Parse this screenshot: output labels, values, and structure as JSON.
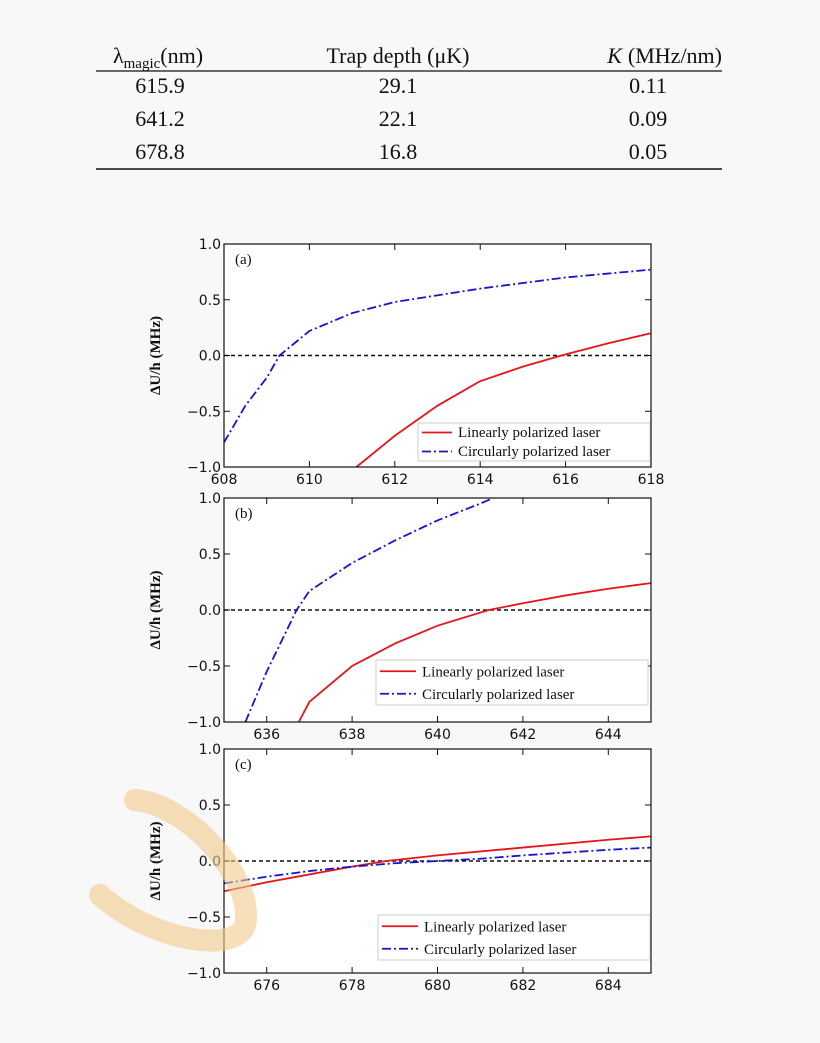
{
  "table": {
    "header": [
      {
        "symbol": "λ",
        "subscript": "magic",
        "unit": "(nm)"
      },
      "Trap depth (μK)",
      {
        "symbol": "K",
        "unit": "(MHz/nm)"
      }
    ],
    "rows": [
      [
        "615.9",
        "29.1",
        "0.11"
      ],
      [
        "641.2",
        "22.1",
        "0.09"
      ],
      [
        "678.8",
        "16.8",
        "0.05"
      ]
    ]
  },
  "chart_data": [
    {
      "type": "line",
      "panel_label": "(a)",
      "ylabel": "ΔU/h (MHz)",
      "xlim": [
        608,
        618
      ],
      "xticks": [
        608,
        610,
        612,
        614,
        616,
        618
      ],
      "ylim": [
        -1,
        1
      ],
      "yticks": [
        {
          "value": -1,
          "label": "−1.0"
        },
        {
          "value": -0.5,
          "label": "−0.5"
        },
        {
          "value": 0,
          "label": "0.0"
        },
        {
          "value": 0.5,
          "label": "0.5"
        },
        {
          "value": 1,
          "label": "1.0"
        }
      ],
      "reference_line": 0,
      "series": [
        {
          "name": "Linearly polarized laser",
          "color": "#e8141c",
          "style": "solid",
          "x": [
            611.1,
            612,
            613,
            614,
            615,
            615.9,
            617,
            618
          ],
          "values": [
            -1.0,
            -0.72,
            -0.45,
            -0.23,
            -0.1,
            0,
            0.11,
            0.2
          ]
        },
        {
          "name": "Circularly polarized laser",
          "color": "#1414d2",
          "style": "dashdot",
          "x": [
            608,
            608.5,
            609,
            609.3,
            610,
            611,
            612,
            614,
            616,
            618
          ],
          "values": [
            -0.78,
            -0.45,
            -0.2,
            0,
            0.22,
            0.38,
            0.48,
            0.6,
            0.7,
            0.77
          ]
        }
      ]
    },
    {
      "type": "line",
      "panel_label": "(b)",
      "ylabel": "ΔU/h (MHz)",
      "xlim": [
        635,
        645
      ],
      "xticks": [
        636,
        638,
        640,
        642,
        644
      ],
      "ylim": [
        -1,
        1
      ],
      "yticks": [
        {
          "value": -1,
          "label": "−1.0"
        },
        {
          "value": -0.5,
          "label": "−0.5"
        },
        {
          "value": 0,
          "label": "0.0"
        },
        {
          "value": 0.5,
          "label": "0.5"
        },
        {
          "value": 1,
          "label": "1.0"
        }
      ],
      "reference_line": 0,
      "series": [
        {
          "name": "Linearly polarized laser",
          "color": "#e8141c",
          "style": "solid",
          "x": [
            636.75,
            637,
            638,
            639,
            640,
            641.2,
            642,
            643,
            644,
            645
          ],
          "values": [
            -1.0,
            -0.82,
            -0.5,
            -0.3,
            -0.14,
            0,
            0.06,
            0.13,
            0.19,
            0.24
          ]
        },
        {
          "name": "Circularly polarized laser",
          "color": "#1414d2",
          "style": "dashdot",
          "x": [
            635.5,
            636,
            636.7,
            637,
            638,
            639,
            640,
            641,
            641.3
          ],
          "values": [
            -1.0,
            -0.55,
            0,
            0.17,
            0.42,
            0.62,
            0.8,
            0.95,
            1.0
          ]
        }
      ]
    },
    {
      "type": "line",
      "panel_label": "(c)",
      "ylabel": "ΔU/h (MHz)",
      "xlim": [
        675,
        685
      ],
      "xticks": [
        676,
        678,
        680,
        682,
        684
      ],
      "ylim": [
        -1,
        1
      ],
      "yticks": [
        {
          "value": -1,
          "label": "−1.0"
        },
        {
          "value": -0.5,
          "label": "−0.5"
        },
        {
          "value": 0,
          "label": "0.0"
        },
        {
          "value": 0.5,
          "label": "0.5"
        },
        {
          "value": 1,
          "label": "1.0"
        }
      ],
      "reference_line": 0,
      "series": [
        {
          "name": "Linearly polarized laser",
          "color": "#e8141c",
          "style": "solid",
          "x": [
            675,
            676,
            677,
            678,
            678.8,
            680,
            682,
            684,
            685
          ],
          "values": [
            -0.27,
            -0.19,
            -0.12,
            -0.05,
            0,
            0.05,
            0.12,
            0.19,
            0.22
          ]
        },
        {
          "name": "Circularly polarized laser",
          "color": "#1414d2",
          "style": "dashdot",
          "x": [
            675,
            676,
            677,
            678,
            679,
            680,
            681,
            682,
            684,
            685
          ],
          "values": [
            -0.2,
            -0.14,
            -0.09,
            -0.05,
            -0.02,
            0,
            0.02,
            0.05,
            0.1,
            0.12
          ]
        }
      ]
    }
  ]
}
